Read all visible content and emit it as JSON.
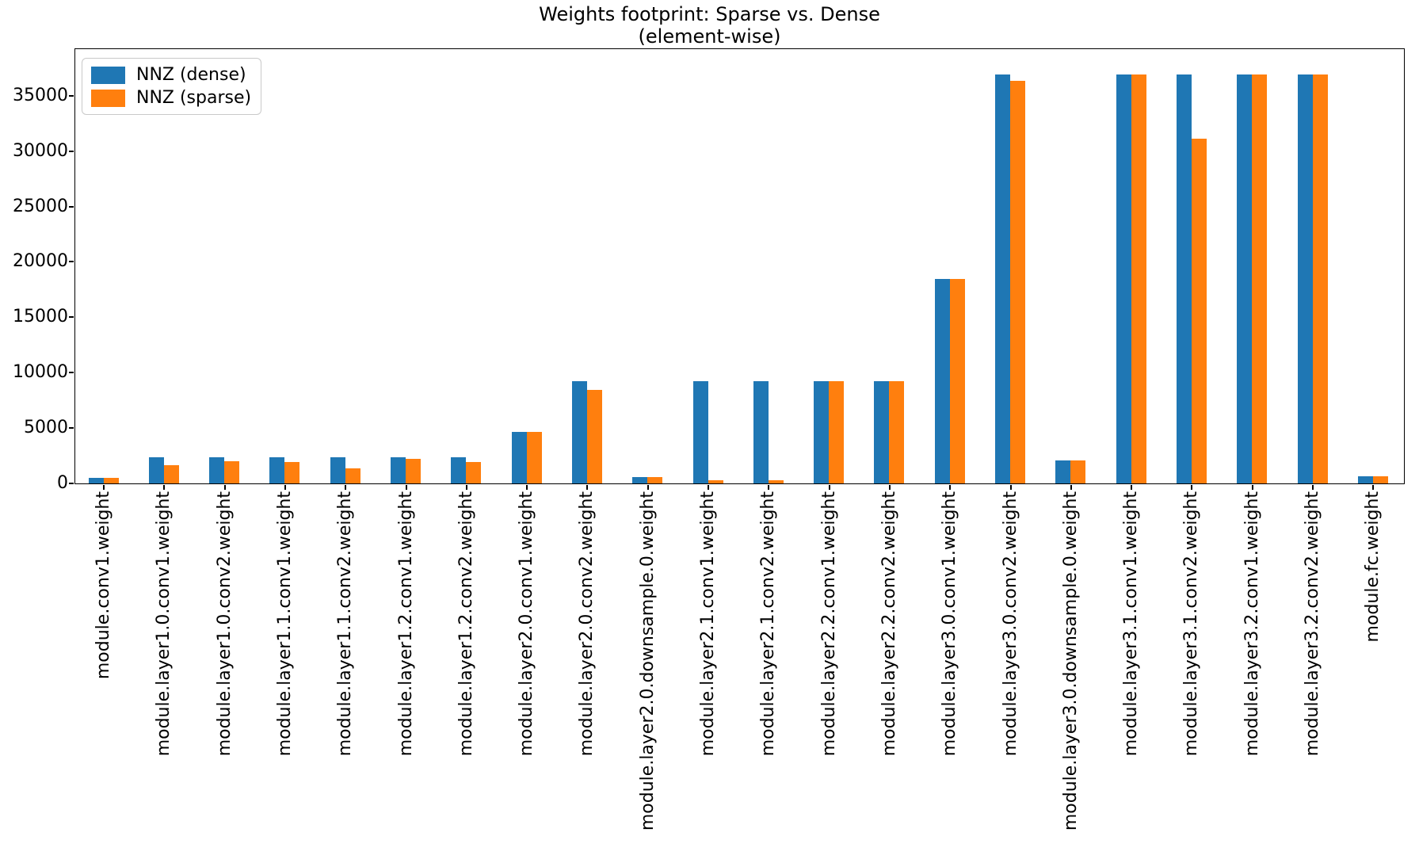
{
  "chart_data": {
    "type": "bar",
    "title": "Weights footprint: Sparse vs. Dense",
    "subtitle": "(element-wise)",
    "xlabel": "",
    "ylabel": "",
    "grid": false,
    "legend_position": "upper left",
    "ylim": [
      0,
      39200
    ],
    "yticks": [
      0,
      5000,
      10000,
      15000,
      20000,
      25000,
      30000,
      35000
    ],
    "categories": [
      "module.conv1.weight",
      "module.layer1.0.conv1.weight",
      "module.layer1.0.conv2.weight",
      "module.layer1.1.conv1.weight",
      "module.layer1.1.conv2.weight",
      "module.layer1.2.conv1.weight",
      "module.layer1.2.conv2.weight",
      "module.layer2.0.conv1.weight",
      "module.layer2.0.conv2.weight",
      "module.layer2.0.downsample.0.weight",
      "module.layer2.1.conv1.weight",
      "module.layer2.1.conv2.weight",
      "module.layer2.2.conv1.weight",
      "module.layer2.2.conv2.weight",
      "module.layer3.0.conv1.weight",
      "module.layer3.0.conv2.weight",
      "module.layer3.0.downsample.0.weight",
      "module.layer3.1.conv1.weight",
      "module.layer3.1.conv2.weight",
      "module.layer3.2.conv1.weight",
      "module.layer3.2.conv2.weight",
      "module.fc.weight"
    ],
    "series": [
      {
        "name": "NNZ (dense)",
        "color": "#1f77b4",
        "values": [
          432,
          2304,
          2304,
          2304,
          2304,
          2304,
          2304,
          4608,
          9216,
          512,
          9216,
          9216,
          9216,
          9216,
          18432,
          36864,
          2048,
          36864,
          36864,
          36864,
          36864,
          640
        ]
      },
      {
        "name": "NNZ (sparse)",
        "color": "#ff7f0e",
        "values": [
          432,
          1600,
          2000,
          1870,
          1300,
          2150,
          1930,
          4608,
          8400,
          512,
          270,
          270,
          9216,
          9216,
          18432,
          36300,
          2048,
          36864,
          31100,
          36864,
          36864,
          640
        ]
      }
    ]
  }
}
